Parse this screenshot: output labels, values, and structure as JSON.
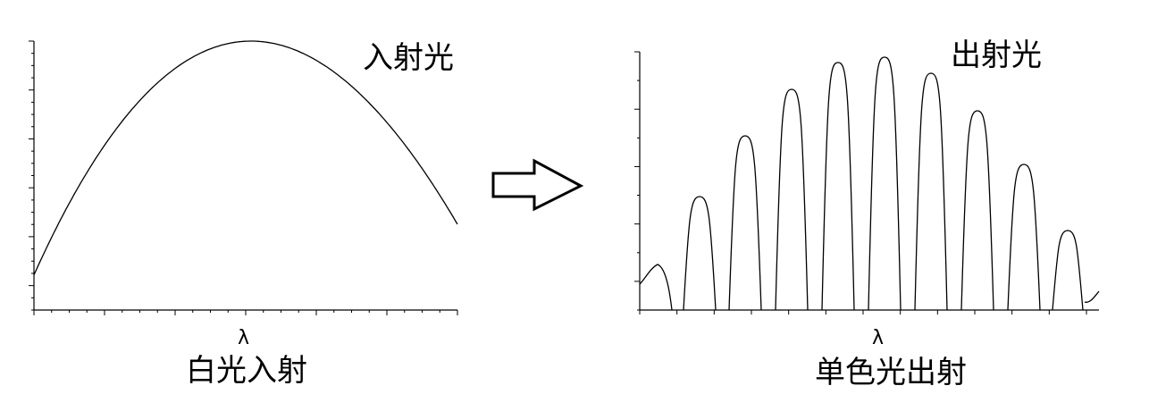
{
  "left": {
    "tag": "入射光",
    "xlabel": "λ",
    "caption": "白光入射"
  },
  "right": {
    "tag": "出射光",
    "xlabel": "λ",
    "caption": "单色光出射"
  },
  "arrow": {
    "direction": "right"
  },
  "chart_data": [
    {
      "type": "line",
      "shape": "single broad hump (bell-shaped curve)",
      "x_ticks_labeled": false,
      "y_ticks_labeled": false
    },
    {
      "type": "line",
      "shape": "series of narrow peaks under a broad envelope",
      "peak_count": 10,
      "x_ticks_labeled": false,
      "y_ticks_labeled": false
    }
  ]
}
